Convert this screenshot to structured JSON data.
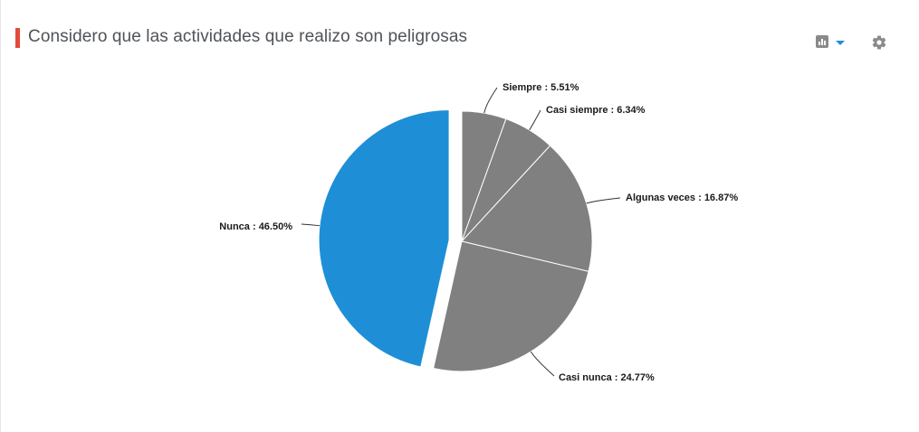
{
  "header": {
    "title": "Considero que las actividades que realizo son peligrosas",
    "chart_menu_icon": "bar-chart-icon",
    "settings_icon": "gear-icon"
  },
  "colors": {
    "accent": "#e24b3b",
    "highlight": "#1e8fd6",
    "slice": "#808080"
  },
  "chart_data": {
    "type": "pie",
    "title": "Considero que las actividades que realizo son peligrosas",
    "slices": [
      {
        "name": "Siempre",
        "value": 5.51,
        "label": "Siempre : 5.51%",
        "color": "#808080",
        "exploded": false
      },
      {
        "name": "Casi siempre",
        "value": 6.34,
        "label": "Casi siempre : 6.34%",
        "color": "#808080",
        "exploded": false
      },
      {
        "name": "Algunas veces",
        "value": 16.87,
        "label": "Algunas veces : 16.87%",
        "color": "#808080",
        "exploded": false
      },
      {
        "name": "Casi nunca",
        "value": 24.77,
        "label": "Casi nunca : 24.77%",
        "color": "#808080",
        "exploded": false
      },
      {
        "name": "Nunca",
        "value": 46.5,
        "label": "Nunca : 46.50%",
        "color": "#1e8fd6",
        "exploded": true
      }
    ]
  }
}
